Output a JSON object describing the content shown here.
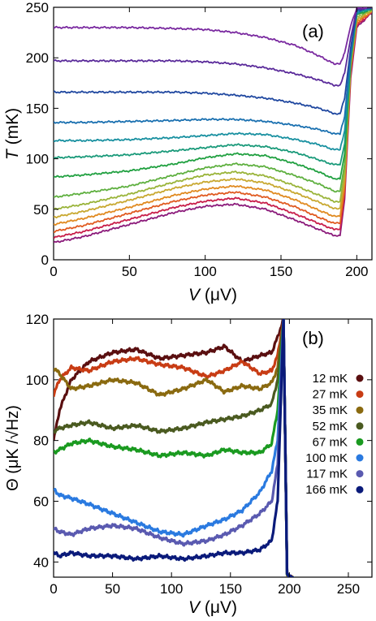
{
  "chart_data": [
    {
      "type": "line",
      "panel_label": "(a)",
      "xlabel_var": "V",
      "xlabel_unit": " (μV)",
      "ylabel_var": "T",
      "ylabel_unit": " (mK)",
      "xlim": [
        0,
        210
      ],
      "ylim": [
        0,
        250
      ],
      "xticks": [
        0,
        50,
        100,
        150,
        200
      ],
      "yticks": [
        0,
        50,
        100,
        150,
        200,
        250
      ],
      "grid": false,
      "series": [
        {
          "color": "#8b1a7a",
          "x": [
            0,
            20,
            50,
            80,
            100,
            120,
            140,
            160,
            175,
            185,
            189,
            192,
            196,
            200,
            210
          ],
          "y": [
            17,
            23,
            35,
            47,
            53,
            55,
            50,
            39,
            30,
            24,
            24,
            60,
            180,
            230,
            245
          ]
        },
        {
          "color": "#c81e4a",
          "x": [
            0,
            20,
            50,
            80,
            100,
            120,
            140,
            160,
            175,
            185,
            189,
            192,
            196,
            200,
            210
          ],
          "y": [
            22,
            28,
            40,
            52,
            58,
            61,
            56,
            45,
            36,
            30,
            30,
            65,
            185,
            232,
            245
          ]
        },
        {
          "color": "#e05a20",
          "x": [
            0,
            20,
            50,
            80,
            100,
            120,
            140,
            160,
            175,
            185,
            189,
            192,
            196,
            200,
            210
          ],
          "y": [
            28,
            34,
            46,
            58,
            64,
            67,
            62,
            52,
            42,
            36,
            36,
            70,
            188,
            234,
            246
          ]
        },
        {
          "color": "#e08a20",
          "x": [
            0,
            20,
            50,
            80,
            100,
            120,
            140,
            160,
            175,
            185,
            189,
            192,
            196,
            200,
            210
          ],
          "y": [
            35,
            41,
            52,
            64,
            70,
            73,
            69,
            59,
            49,
            43,
            43,
            76,
            190,
            236,
            246
          ]
        },
        {
          "color": "#c8a830",
          "x": [
            0,
            20,
            50,
            80,
            100,
            120,
            140,
            160,
            175,
            185,
            189,
            192,
            196,
            200,
            210
          ],
          "y": [
            42,
            48,
            59,
            71,
            77,
            80,
            76,
            66,
            57,
            51,
            51,
            82,
            192,
            238,
            247
          ]
        },
        {
          "color": "#9ab43a",
          "x": [
            0,
            20,
            50,
            80,
            100,
            120,
            140,
            160,
            175,
            185,
            189,
            192,
            196,
            200,
            210
          ],
          "y": [
            50,
            55,
            65,
            77,
            84,
            87,
            83,
            73,
            64,
            58,
            58,
            88,
            194,
            240,
            247
          ]
        },
        {
          "color": "#5fb040",
          "x": [
            0,
            20,
            50,
            80,
            100,
            120,
            140,
            160,
            175,
            185,
            189,
            192,
            196,
            200,
            210
          ],
          "y": [
            62,
            66,
            73,
            84,
            91,
            95,
            92,
            83,
            75,
            68,
            68,
            95,
            196,
            242,
            248
          ]
        },
        {
          "color": "#20a040",
          "x": [
            0,
            20,
            50,
            80,
            100,
            120,
            140,
            160,
            175,
            185,
            189,
            192,
            196,
            200,
            210
          ],
          "y": [
            82,
            84,
            88,
            95,
            101,
            105,
            103,
            95,
            87,
            80,
            80,
            105,
            198,
            243,
            248
          ]
        },
        {
          "color": "#1a9a7a",
          "x": [
            0,
            20,
            50,
            80,
            100,
            120,
            140,
            160,
            175,
            185,
            189,
            192,
            196,
            200,
            210
          ],
          "y": [
            101,
            102,
            104,
            108,
            111,
            114,
            112,
            106,
            99,
            94,
            94,
            115,
            200,
            244,
            249
          ]
        },
        {
          "color": "#1890a0",
          "x": [
            0,
            20,
            50,
            80,
            100,
            120,
            140,
            160,
            175,
            185,
            189,
            192,
            196,
            200,
            210
          ],
          "y": [
            118,
            118,
            119,
            121,
            123,
            125,
            124,
            119,
            114,
            109,
            109,
            128,
            202,
            245,
            249
          ]
        },
        {
          "color": "#1a70b0",
          "x": [
            0,
            20,
            50,
            80,
            100,
            120,
            140,
            160,
            175,
            185,
            189,
            192,
            196,
            200,
            210
          ],
          "y": [
            136,
            136,
            137,
            138,
            139,
            139,
            137,
            133,
            129,
            125,
            125,
            142,
            205,
            246,
            250
          ]
        },
        {
          "color": "#2048a0",
          "x": [
            0,
            20,
            50,
            80,
            100,
            120,
            140,
            160,
            175,
            185,
            189,
            192,
            196,
            200,
            210
          ],
          "y": [
            166,
            166,
            166,
            166,
            165,
            163,
            160,
            155,
            150,
            145,
            145,
            160,
            210,
            247,
            250
          ]
        },
        {
          "color": "#5a2a9a",
          "x": [
            0,
            20,
            50,
            80,
            100,
            120,
            140,
            160,
            175,
            185,
            189,
            192,
            196,
            200,
            210
          ],
          "y": [
            197,
            197,
            197,
            197,
            196,
            194,
            190,
            184,
            178,
            173,
            173,
            185,
            220,
            248,
            250
          ]
        },
        {
          "color": "#7a2aa0",
          "x": [
            0,
            20,
            50,
            80,
            100,
            120,
            140,
            160,
            175,
            185,
            189,
            192,
            196,
            200,
            210
          ],
          "y": [
            230,
            230,
            230,
            229,
            228,
            225,
            220,
            212,
            202,
            194,
            194,
            205,
            232,
            249,
            250
          ]
        }
      ]
    },
    {
      "type": "line",
      "panel_label": "(b)",
      "xlabel_var": "V",
      "xlabel_unit": " (μV)",
      "ylabel_text": "Θ (μK /√Hz)",
      "xlim": [
        0,
        270
      ],
      "ylim": [
        35,
        120
      ],
      "xticks": [
        0,
        50,
        100,
        150,
        200,
        250
      ],
      "yticks": [
        40,
        60,
        80,
        100,
        120
      ],
      "grid": false,
      "legend_position": "right",
      "series": [
        {
          "name": "12 mK",
          "color": "#5a0f10",
          "x": [
            0,
            5,
            15,
            30,
            50,
            70,
            90,
            110,
            130,
            145,
            160,
            175,
            185,
            190,
            195,
            198,
            200,
            220,
            250,
            270
          ],
          "y": [
            80,
            90,
            100,
            106,
            109,
            110,
            107,
            108,
            109,
            111,
            106,
            108,
            109,
            114,
            120,
            36,
            35,
            32,
            31,
            30
          ]
        },
        {
          "name": "27 mK",
          "color": "#c83c14",
          "x": [
            0,
            5,
            15,
            30,
            50,
            70,
            90,
            110,
            130,
            145,
            160,
            175,
            185,
            190,
            195,
            198,
            200,
            220,
            250,
            270
          ],
          "y": [
            95,
            100,
            104,
            103,
            106,
            107,
            105,
            104,
            101,
            103,
            106,
            102,
            103,
            108,
            120,
            36,
            35,
            32,
            31,
            30
          ]
        },
        {
          "name": "35 mK",
          "color": "#8a6a10",
          "x": [
            0,
            5,
            15,
            30,
            50,
            70,
            90,
            110,
            130,
            145,
            160,
            175,
            185,
            190,
            195,
            198,
            200,
            220,
            250,
            270
          ],
          "y": [
            104,
            102,
            97,
            98,
            100,
            99,
            95,
            97,
            100,
            96,
            98,
            97,
            99,
            104,
            120,
            36,
            35,
            32,
            31,
            30
          ]
        },
        {
          "name": "52 mK",
          "color": "#4a5a20",
          "x": [
            0,
            5,
            15,
            30,
            50,
            70,
            90,
            110,
            130,
            145,
            160,
            175,
            185,
            190,
            195,
            198,
            200,
            220,
            250,
            270
          ],
          "y": [
            83,
            84,
            85,
            86,
            84,
            85,
            83,
            84,
            86,
            87,
            88,
            90,
            92,
            100,
            120,
            36,
            35,
            32,
            31,
            30
          ]
        },
        {
          "name": "67 mK",
          "color": "#1a9a20",
          "x": [
            0,
            5,
            15,
            30,
            50,
            70,
            90,
            110,
            130,
            145,
            160,
            175,
            185,
            190,
            195,
            198,
            200,
            220,
            250,
            270
          ],
          "y": [
            76,
            77,
            79,
            80,
            78,
            77,
            75,
            76,
            75,
            77,
            76,
            76,
            79,
            90,
            120,
            36,
            35,
            32,
            31,
            30
          ]
        },
        {
          "name": "100 mK",
          "color": "#2a7ae0",
          "x": [
            0,
            5,
            15,
            30,
            50,
            70,
            90,
            110,
            130,
            145,
            160,
            175,
            185,
            190,
            195,
            198,
            200,
            220,
            250,
            270
          ],
          "y": [
            64,
            62,
            61,
            59,
            56,
            53,
            50,
            49,
            52,
            54,
            57,
            63,
            70,
            80,
            120,
            36,
            35,
            32,
            31,
            30
          ]
        },
        {
          "name": "117 mK",
          "color": "#5a5ab0",
          "x": [
            0,
            5,
            15,
            30,
            50,
            70,
            90,
            110,
            130,
            145,
            160,
            175,
            185,
            190,
            195,
            198,
            200,
            220,
            250,
            270
          ],
          "y": [
            51,
            50,
            49,
            51,
            52,
            51,
            48,
            46,
            47,
            49,
            52,
            56,
            60,
            72,
            120,
            36,
            35,
            32,
            31,
            30
          ]
        },
        {
          "name": "166 mK",
          "color": "#0a1a7a",
          "x": [
            0,
            5,
            15,
            30,
            50,
            70,
            90,
            110,
            130,
            145,
            160,
            175,
            185,
            190,
            195,
            198,
            200,
            220,
            250,
            270
          ],
          "y": [
            43,
            42,
            43,
            42,
            42,
            41,
            42,
            41,
            42,
            43,
            43,
            44,
            47,
            60,
            120,
            36,
            35,
            32,
            31,
            30
          ]
        }
      ]
    }
  ]
}
